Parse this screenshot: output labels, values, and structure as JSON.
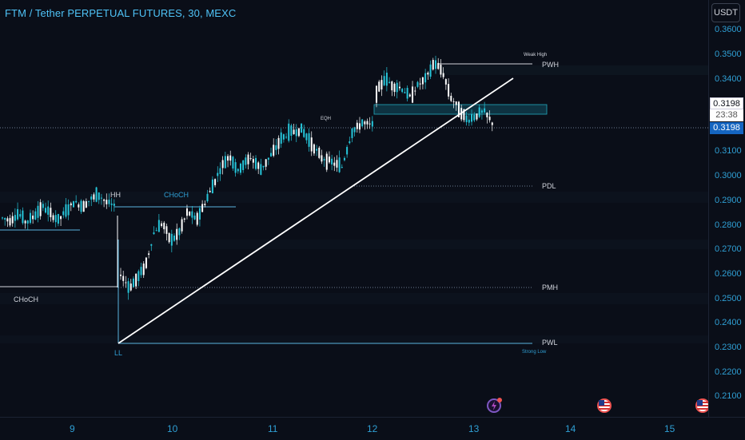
{
  "header": {
    "title": "FTM / Tether PERPETUAL FUTURES, 30, MEXC"
  },
  "price_scale": {
    "currency": "USDT",
    "ticks": [
      "0.3600",
      "0.3500",
      "0.3400",
      "0.3100",
      "0.3000",
      "0.2900",
      "0.2800",
      "0.2700",
      "0.2600",
      "0.2500",
      "0.2400",
      "0.2300",
      "0.2200",
      "0.2100"
    ],
    "last_price_label": "0.3198",
    "countdown": "23:38",
    "current_price_label": "0.3198"
  },
  "time_axis": {
    "days": [
      "9",
      "10",
      "11",
      "12",
      "13",
      "14",
      "15"
    ]
  },
  "annotations": {
    "hh": "HH",
    "choch_upper": "CHoCH",
    "choch_lower": "CHoCH",
    "ll": "LL",
    "eqh": "EQH",
    "weak_high": "Weak High",
    "pwh_top": "PWH",
    "pdl": "PDL",
    "pmh": "PMH",
    "pwl": "PWL",
    "strong_low": "Strong Low"
  },
  "colors": {
    "background": "#0a0e18",
    "up_candle": "#26c6da",
    "down_candle": "#ffffff",
    "axis_text": "#2f9fd4",
    "trendline": "#ffffff",
    "level_line": "#5ab4e0",
    "current_price_tag": "#1565c0"
  },
  "icons": [
    "flash-event-icon",
    "us-flag-event-icon",
    "us-flag-event-icon"
  ],
  "chart_data": {
    "type": "candlestick",
    "symbol": "FTM / Tether PERPETUAL FUTURES",
    "interval": "30",
    "exchange": "MEXC",
    "x_labels": [
      "9",
      "10",
      "11",
      "12",
      "13",
      "14",
      "15"
    ],
    "ylim": [
      0.2,
      0.365
    ],
    "last_price": 0.3198,
    "approx_price_path": [
      [
        0.278,
        0.277,
        0.28,
        0.276,
        0.279,
        0.283,
        0.28,
        0.277,
        0.281,
        0.285,
        0.283,
        0.286,
        0.288,
        0.285,
        0.283
      ],
      [
        0.254,
        0.248,
        0.252,
        0.258,
        0.272,
        0.276,
        0.268,
        0.272,
        0.281,
        0.277,
        0.284,
        0.292,
        0.3,
        0.305,
        0.298
      ],
      [
        0.3,
        0.304,
        0.299,
        0.305,
        0.312,
        0.315,
        0.316,
        0.31,
        0.304,
        0.302,
        0.3,
        0.315,
        0.319,
        0.318
      ],
      [
        0.332,
        0.338,
        0.335,
        0.334,
        0.33,
        0.335,
        0.338,
        0.345,
        0.341,
        0.33,
        0.325,
        0.32,
        0.322,
        0.324,
        0.319
      ]
    ],
    "levels": [
      {
        "label": "PWH",
        "value": 0.346
      },
      {
        "label": "PDL",
        "value": 0.296
      },
      {
        "label": "PMH",
        "value": 0.255
      },
      {
        "label": "PWL",
        "value": 0.232
      },
      {
        "label": "CHoCH",
        "value": 0.288
      },
      {
        "label": "CHoCH",
        "value": 0.255
      }
    ],
    "trendline": {
      "from": 0.232,
      "to": 0.34
    }
  }
}
